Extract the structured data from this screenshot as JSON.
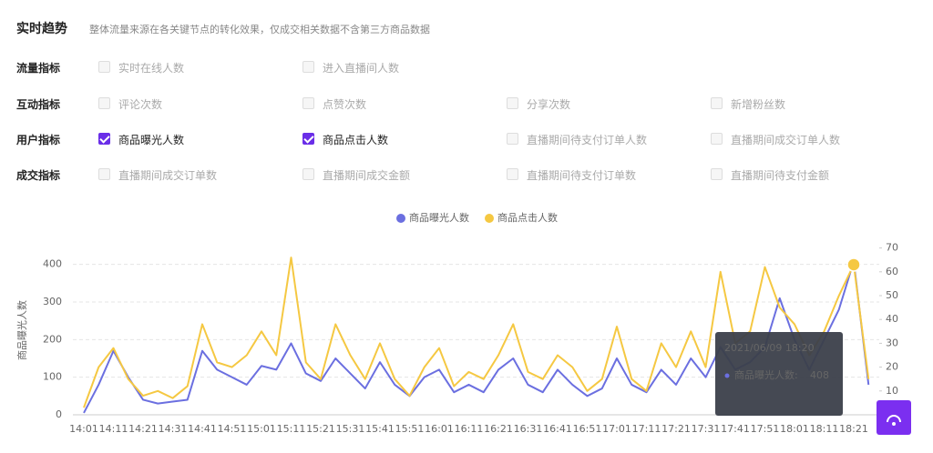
{
  "header": {
    "title": "实时趋势",
    "subtitle": "整体流量来源在各关键节点的转化效果，仅成交相关数据不含第三方商品数据"
  },
  "filters": [
    {
      "label": "流量指标",
      "options": [
        {
          "text": "实时在线人数",
          "checked": false
        },
        {
          "text": "进入直播间人数",
          "checked": false
        }
      ]
    },
    {
      "label": "互动指标",
      "options": [
        {
          "text": "评论次数",
          "checked": false
        },
        {
          "text": "点赞次数",
          "checked": false
        },
        {
          "text": "分享次数",
          "checked": false
        },
        {
          "text": "新增粉丝数",
          "checked": false
        }
      ]
    },
    {
      "label": "用户指标",
      "options": [
        {
          "text": "商品曝光人数",
          "checked": true
        },
        {
          "text": "商品点击人数",
          "checked": true
        },
        {
          "text": "直播期间待支付订单人数",
          "checked": false
        },
        {
          "text": "直播期间成交订单人数",
          "checked": false
        }
      ]
    },
    {
      "label": "成交指标",
      "options": [
        {
          "text": "直播期间成交订单数",
          "checked": false
        },
        {
          "text": "直播期间成交金额",
          "checked": false
        },
        {
          "text": "直播期间待支付订单数",
          "checked": false
        },
        {
          "text": "直播期间待支付金额",
          "checked": false
        }
      ]
    }
  ],
  "chart_data": {
    "type": "line",
    "ylabel": "商品曝光人数",
    "categories": [
      "14:01",
      null,
      "14:11",
      null,
      "14:21",
      null,
      "14:31",
      null,
      "14:41",
      null,
      "14:51",
      null,
      "15:01",
      null,
      "15:11",
      null,
      "15:21",
      null,
      "15:31",
      null,
      "15:41",
      null,
      "15:51",
      null,
      "16:01",
      null,
      "16:11",
      null,
      "16:21",
      null,
      "16:31",
      null,
      "16:41",
      null,
      "16:51",
      null,
      "17:01",
      null,
      "17:11",
      null,
      "17:21",
      null,
      "17:31",
      null,
      "17:41",
      null,
      "17:51",
      null,
      "18:01",
      null,
      "18:11",
      null,
      "18:21",
      null
    ],
    "series": [
      {
        "name": "商品曝光人数",
        "color": "#6b6fe0",
        "values": [
          5,
          80,
          170,
          100,
          40,
          30,
          35,
          40,
          170,
          120,
          100,
          80,
          130,
          120,
          190,
          110,
          90,
          150,
          110,
          70,
          140,
          80,
          50,
          100,
          120,
          60,
          80,
          60,
          120,
          150,
          80,
          60,
          120,
          80,
          50,
          70,
          150,
          80,
          60,
          120,
          80,
          150,
          100,
          180,
          120,
          140,
          180,
          310,
          200,
          120,
          200,
          280,
          408,
          80
        ]
      },
      {
        "name": "商品点击人数",
        "color": "#f5c842",
        "axis": "y2",
        "values": [
          3,
          20,
          28,
          15,
          8,
          10,
          7,
          12,
          38,
          22,
          20,
          25,
          35,
          25,
          66,
          22,
          15,
          38,
          25,
          15,
          30,
          15,
          8,
          20,
          28,
          12,
          18,
          15,
          25,
          38,
          18,
          15,
          25,
          20,
          10,
          15,
          37,
          15,
          10,
          30,
          20,
          35,
          20,
          60,
          30,
          35,
          62,
          45,
          38,
          25,
          35,
          50,
          63,
          15
        ]
      }
    ],
    "ylim": [
      0,
      450
    ],
    "yticks": [
      0,
      100,
      200,
      300,
      400
    ],
    "y2lim": [
      0,
      71
    ],
    "y2ticks": [
      10,
      20,
      30,
      40,
      50,
      60,
      70
    ],
    "grid": true,
    "tooltip": {
      "title": "2021/06/09 18:20",
      "label": "商品曝光人数:",
      "value": 408
    }
  }
}
